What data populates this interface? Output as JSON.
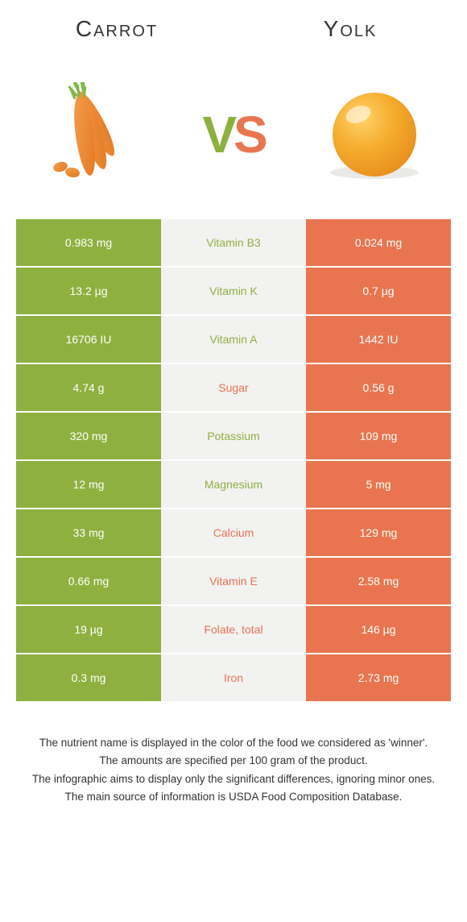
{
  "colors": {
    "carrot": "#8eb03f",
    "yolk": "#e8754f",
    "mid_bg": "#f2f2f1",
    "vs_v": "#8eb03f",
    "vs_s": "#e8754f",
    "yolk_sphere": "#f2a72f",
    "carrot_body": "#ee8933",
    "carrot_leaf": "#7fb84a"
  },
  "header": {
    "left": "Carrot",
    "right": "Yolk"
  },
  "vs": {
    "v": "V",
    "s": "S"
  },
  "rows": [
    {
      "left": "0.983 mg",
      "label": "Vitamin B3",
      "right": "0.024 mg",
      "winner": "carrot"
    },
    {
      "left": "13.2 µg",
      "label": "Vitamin K",
      "right": "0.7 µg",
      "winner": "carrot"
    },
    {
      "left": "16706 IU",
      "label": "Vitamin A",
      "right": "1442 IU",
      "winner": "carrot"
    },
    {
      "left": "4.74 g",
      "label": "Sugar",
      "right": "0.56 g",
      "winner": "yolk"
    },
    {
      "left": "320 mg",
      "label": "Potassium",
      "right": "109 mg",
      "winner": "carrot"
    },
    {
      "left": "12 mg",
      "label": "Magnesium",
      "right": "5 mg",
      "winner": "carrot"
    },
    {
      "left": "33 mg",
      "label": "Calcium",
      "right": "129 mg",
      "winner": "yolk"
    },
    {
      "left": "0.66 mg",
      "label": "Vitamin E",
      "right": "2.58 mg",
      "winner": "yolk"
    },
    {
      "left": "19 µg",
      "label": "Folate, total",
      "right": "146 µg",
      "winner": "yolk"
    },
    {
      "left": "0.3 mg",
      "label": "Iron",
      "right": "2.73 mg",
      "winner": "yolk"
    }
  ],
  "footer": {
    "l1": "The nutrient name is displayed in the color of the food we considered as 'winner'.",
    "l2": "The amounts are specified per 100 gram of the product.",
    "l3": "The infographic aims to display only the significant differences, ignoring minor ones.",
    "l4": "The main source of information is USDA Food Composition Database."
  }
}
